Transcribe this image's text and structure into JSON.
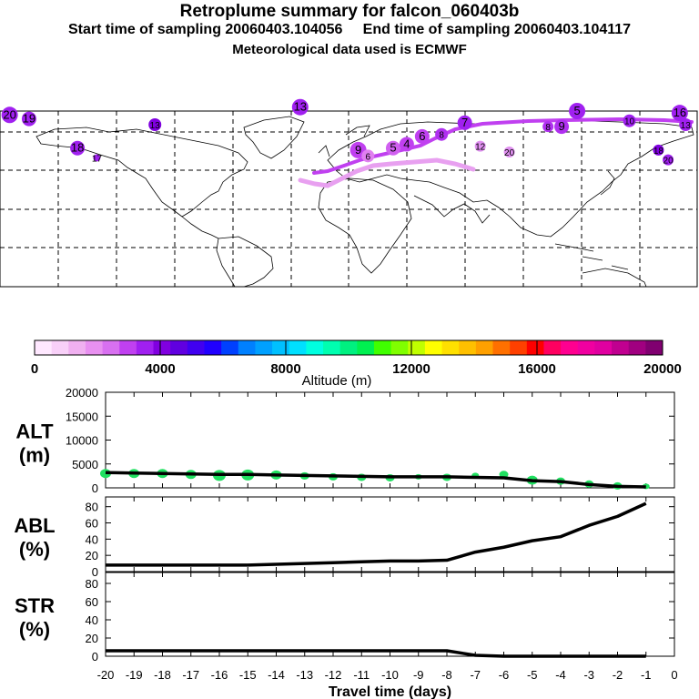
{
  "header": {
    "title": "Retroplume summary for falcon_060403b",
    "start_label": "Start time of sampling 20060403.104056",
    "end_label": "End time of sampling 20060403.104117",
    "met_label": "Meteorological data used is ECMWF"
  },
  "map": {
    "markers": [
      {
        "label": "20",
        "lon": -175,
        "lat": 68,
        "c": "#a020f0",
        "r": 9
      },
      {
        "label": "19",
        "lon": -165,
        "lat": 66,
        "c": "#a020f0",
        "r": 8
      },
      {
        "label": "18",
        "lon": -140,
        "lat": 51,
        "c": "#a020f0",
        "r": 8
      },
      {
        "label": "17",
        "lon": -130,
        "lat": 46,
        "c": "#a020f0",
        "r": 4
      },
      {
        "label": "13",
        "lon": -100,
        "lat": 63,
        "c": "#8000e0",
        "r": 7
      },
      {
        "label": "13",
        "lon": -25,
        "lat": 72,
        "c": "#a020f0",
        "r": 9
      },
      {
        "label": "9",
        "lon": 5,
        "lat": 50,
        "c": "#c040f0",
        "r": 9
      },
      {
        "label": "6",
        "lon": 10,
        "lat": 47,
        "c": "#e080f0",
        "r": 7
      },
      {
        "label": "5",
        "lon": 23,
        "lat": 51,
        "c": "#d060f0",
        "r": 8
      },
      {
        "label": "4",
        "lon": 30,
        "lat": 53,
        "c": "#c040f0",
        "r": 8
      },
      {
        "label": "6",
        "lon": 38,
        "lat": 57,
        "c": "#c040f0",
        "r": 8
      },
      {
        "label": "8",
        "lon": 48,
        "lat": 58,
        "c": "#b030f0",
        "r": 7
      },
      {
        "label": "7",
        "lon": 60,
        "lat": 64,
        "c": "#a020f0",
        "r": 8
      },
      {
        "label": "12",
        "lon": 68,
        "lat": 52,
        "c": "#e090f0",
        "r": 6
      },
      {
        "label": "20",
        "lon": 83,
        "lat": 49,
        "c": "#e090f0",
        "r": 6
      },
      {
        "label": "8",
        "lon": 103,
        "lat": 62,
        "c": "#b030f0",
        "r": 6
      },
      {
        "label": "9",
        "lon": 110,
        "lat": 62,
        "c": "#b030f0",
        "r": 8
      },
      {
        "label": "5",
        "lon": 118,
        "lat": 70,
        "c": "#a020f0",
        "r": 9
      },
      {
        "label": "10",
        "lon": 145,
        "lat": 65,
        "c": "#a020f0",
        "r": 7
      },
      {
        "label": "18",
        "lon": 160,
        "lat": 50,
        "c": "#8000e0",
        "r": 6
      },
      {
        "label": "20",
        "lon": 165,
        "lat": 45,
        "c": "#a020f0",
        "r": 6
      },
      {
        "label": "16",
        "lon": 171,
        "lat": 69,
        "c": "#a020f0",
        "r": 9
      },
      {
        "label": "13",
        "lon": 174,
        "lat": 63,
        "c": "#a020f0",
        "r": 7
      }
    ]
  },
  "colorbar": {
    "colors": [
      "#ffe8ff",
      "#f8d0f8",
      "#f0b0f0",
      "#e890f0",
      "#d870f0",
      "#c040f0",
      "#a020f0",
      "#8000e0",
      "#6000e0",
      "#4000f0",
      "#2000ff",
      "#0040ff",
      "#0080ff",
      "#00a0ff",
      "#00c0ff",
      "#00e0ff",
      "#00ffe0",
      "#00ffb0",
      "#00f080",
      "#00f050",
      "#40ff00",
      "#80ff00",
      "#c0ff00",
      "#ffff00",
      "#ffe000",
      "#ffc000",
      "#ffa000",
      "#ff7000",
      "#ff4000",
      "#ff0000",
      "#ff0060",
      "#ff0090",
      "#f000a0",
      "#e000a0",
      "#c00090",
      "#a00080",
      "#800070"
    ],
    "tick_labels": [
      "0",
      "4000",
      "8000",
      "12000",
      "16000",
      "20000"
    ],
    "label": "Altitude (m)"
  },
  "chart_data": [
    {
      "type": "line",
      "ylabel": "ALT\n(m)",
      "ylabel_lines": [
        "ALT",
        "(m)"
      ],
      "ylim": [
        0,
        20000
      ],
      "yticks": [
        "20000",
        "15000",
        "10000",
        "5000",
        "0"
      ],
      "ytick_values": [
        20000,
        15000,
        10000,
        5000,
        0
      ],
      "x": [
        -20,
        -19,
        -18,
        -17,
        -16,
        -15,
        -14,
        -13,
        -12,
        -11,
        -10,
        -9,
        -8,
        -7,
        -6,
        -5,
        -4,
        -3,
        -2,
        -1
      ],
      "values": [
        3200,
        3100,
        3000,
        2900,
        2800,
        2800,
        2700,
        2600,
        2500,
        2400,
        2300,
        2300,
        2300,
        2200,
        2100,
        1500,
        1300,
        700,
        300,
        200
      ],
      "markers": [
        3000,
        3000,
        3000,
        2800,
        2600,
        2700,
        2700,
        2500,
        2300,
        2200,
        2100,
        2300,
        2200,
        2600,
        2800,
        1600,
        1400,
        800,
        400,
        300
      ]
    },
    {
      "type": "line",
      "ylabel": "ABL\n(%)",
      "ylabel_lines": [
        "ABL",
        "(%)"
      ],
      "ylim": [
        0,
        92
      ],
      "yticks": [
        "80",
        "60",
        "40",
        "20",
        "0"
      ],
      "ytick_values": [
        80,
        60,
        40,
        20,
        0
      ],
      "x": [
        -20,
        -19,
        -18,
        -17,
        -16,
        -15,
        -14,
        -13,
        -12,
        -11,
        -10,
        -9,
        -8,
        -7,
        -6,
        -5,
        -4,
        -3,
        -2,
        -1
      ],
      "values": [
        8,
        8,
        8,
        8,
        8,
        8,
        9,
        10,
        11,
        12,
        13,
        13,
        14,
        24,
        30,
        38,
        43,
        57,
        68,
        84
      ]
    },
    {
      "type": "line",
      "ylabel": "STR\n(%)",
      "ylabel_lines": [
        "STR",
        "(%)"
      ],
      "ylim": [
        0,
        92
      ],
      "yticks": [
        "80",
        "60",
        "40",
        "20",
        "0"
      ],
      "ytick_values": [
        80,
        60,
        40,
        20,
        0
      ],
      "x": [
        -20,
        -19,
        -18,
        -17,
        -16,
        -15,
        -14,
        -13,
        -12,
        -11,
        -10,
        -9,
        -8,
        -7,
        -6,
        -5,
        -4,
        -3,
        -2,
        -1
      ],
      "values": [
        6,
        6,
        6,
        6,
        6,
        6,
        6,
        6,
        6,
        6,
        6,
        6,
        6,
        1,
        0,
        0,
        0,
        0,
        0,
        0
      ],
      "xlabel": "Travel time (days)",
      "xticks": [
        "-20",
        "-19",
        "-18",
        "-17",
        "-16",
        "-15",
        "-14",
        "-13",
        "-12",
        "-11",
        "-10",
        "-9",
        "-8",
        "-7",
        "-6",
        "-5",
        "-4",
        "-3",
        "-2",
        "-1",
        "0"
      ],
      "xtick_values": [
        -20,
        -19,
        -18,
        -17,
        -16,
        -15,
        -14,
        -13,
        -12,
        -11,
        -10,
        -9,
        -8,
        -7,
        -6,
        -5,
        -4,
        -3,
        -2,
        -1,
        0
      ],
      "xlim": [
        -20,
        0
      ]
    }
  ]
}
